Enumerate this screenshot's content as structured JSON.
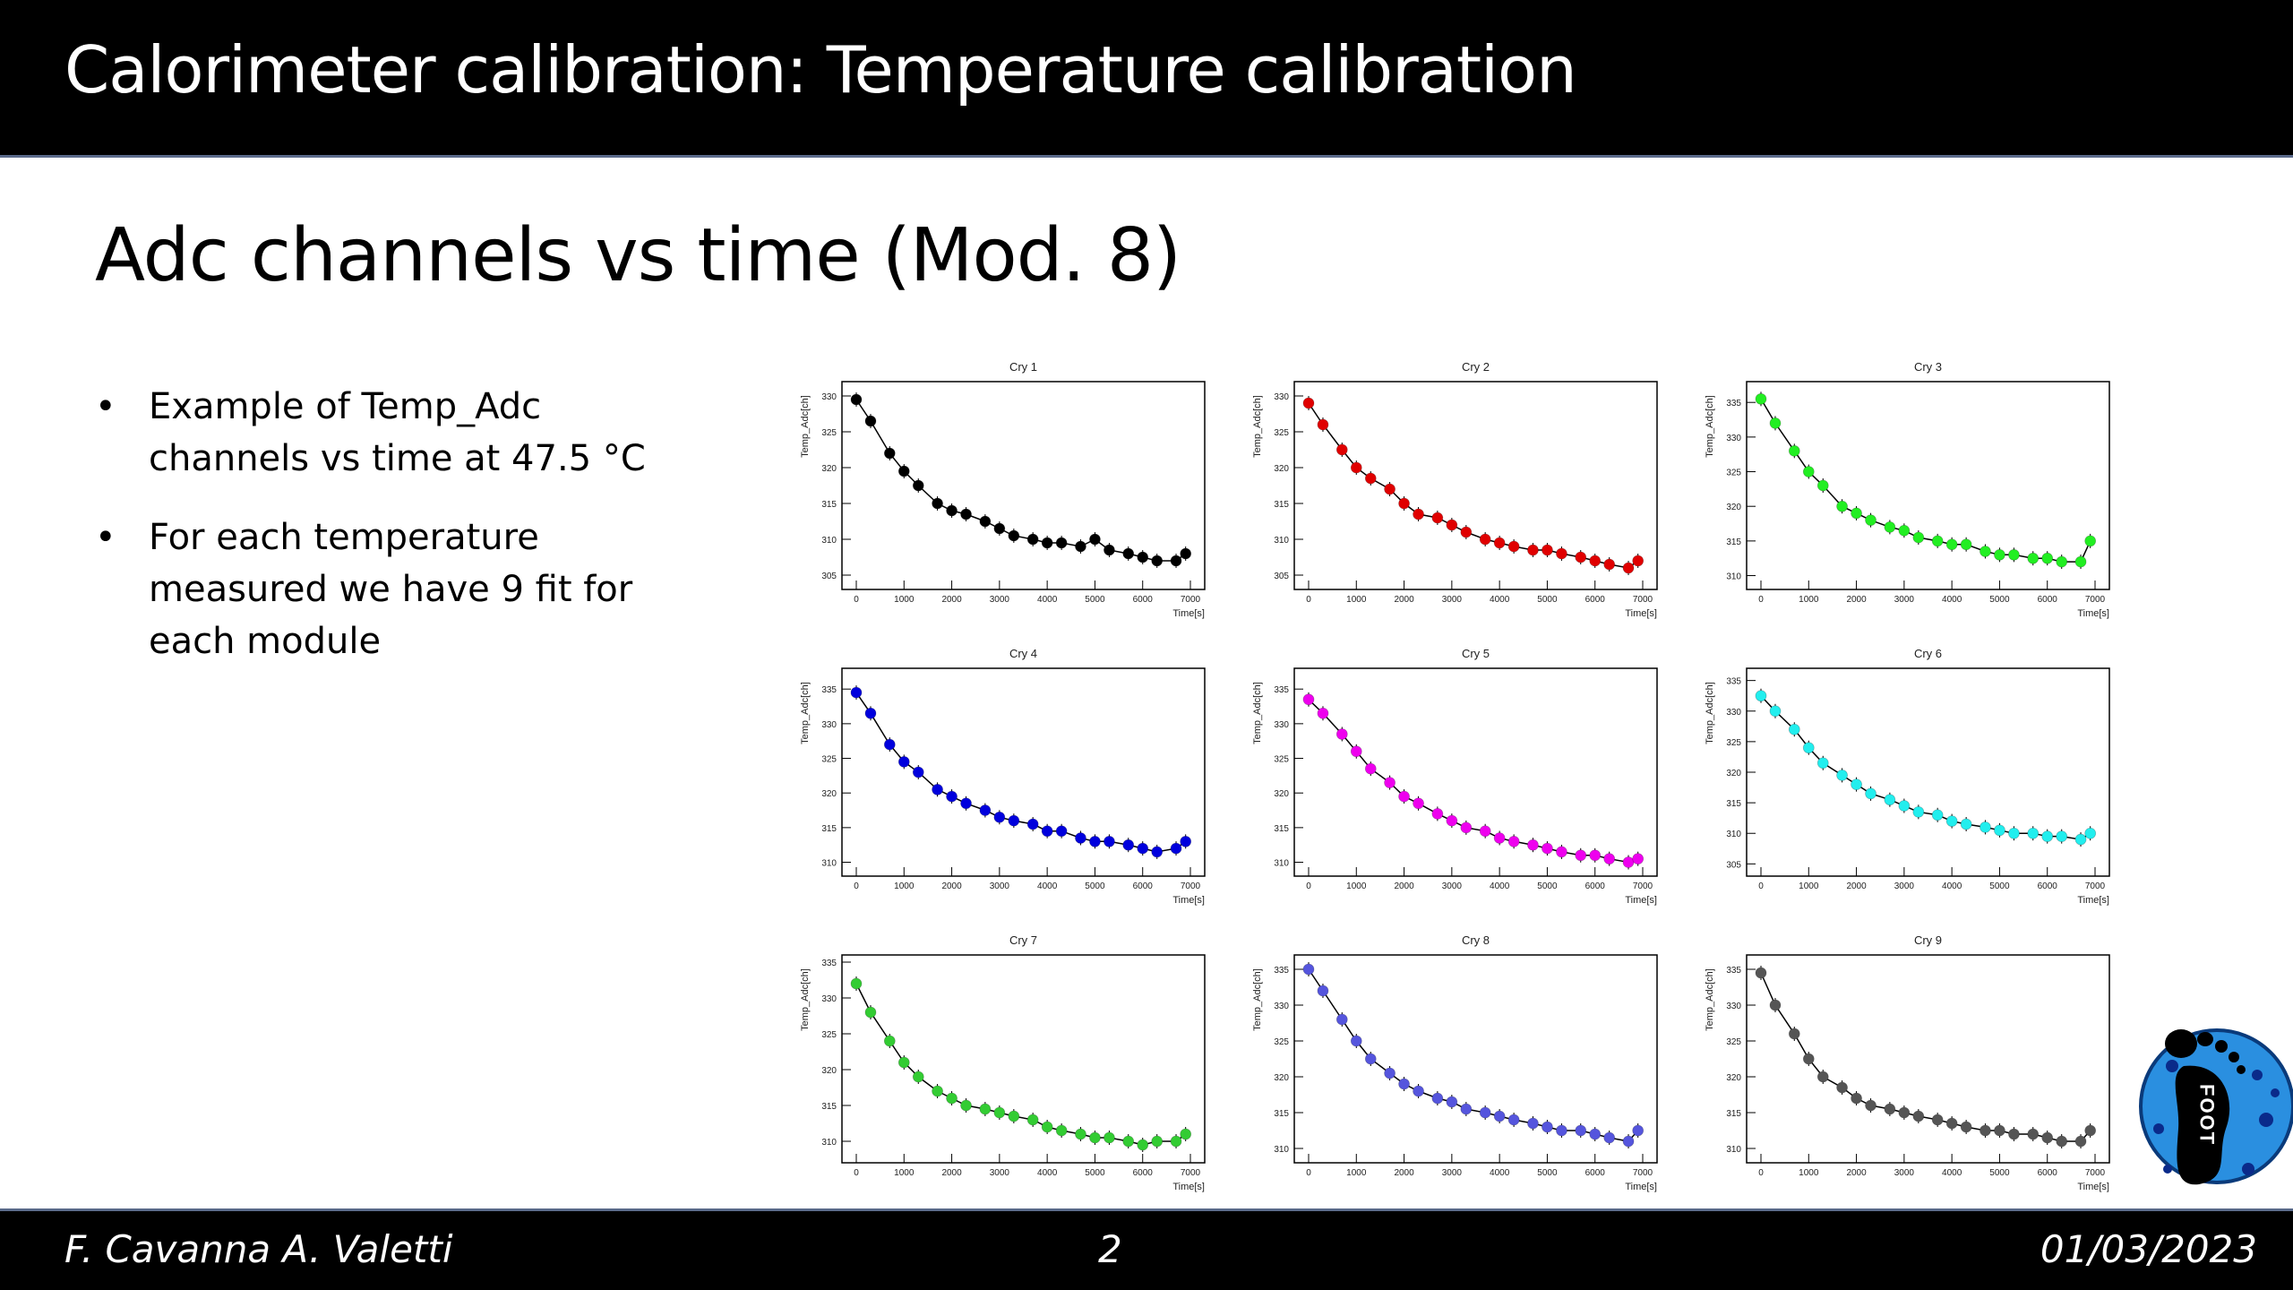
{
  "header": {
    "title": "Calorimeter calibration: Temperature calibration"
  },
  "slide": {
    "subtitle": "Adc channels vs time (Mod. 8)",
    "bullets": [
      "Example of Temp_Adc channels vs time at 47.5 °C",
      "For each temperature measured we have 9 fit for each module"
    ]
  },
  "footer": {
    "authors": "F. Cavanna A. Valetti",
    "page": "2",
    "date": "01/03/2023"
  },
  "logo": {
    "text": "FOOT"
  },
  "colors": {
    "bar": "#000000",
    "accent_line": "#5a6a8a"
  },
  "chart_data": [
    {
      "type": "scatter",
      "title": "Cry 1",
      "xlabel": "Time[s]",
      "ylabel": "Temp_Adc[ch]",
      "color": "#000000",
      "xlim": [
        -300,
        7300
      ],
      "ylim": [
        303,
        332
      ],
      "xticks": [
        0,
        1000,
        2000,
        3000,
        4000,
        5000,
        6000,
        7000
      ],
      "yticks": [
        305,
        310,
        315,
        320,
        325,
        330
      ],
      "x": [
        0,
        300,
        700,
        1000,
        1300,
        1700,
        2000,
        2300,
        2700,
        3000,
        3300,
        3700,
        4000,
        4300,
        4700,
        5000,
        5300,
        5700,
        6000,
        6300,
        6700,
        6900
      ],
      "y": [
        329.5,
        326.5,
        322,
        319.5,
        317.5,
        315,
        314,
        313.5,
        312.5,
        311.5,
        310.5,
        310,
        309.5,
        309.5,
        309,
        310,
        308.5,
        308,
        307.5,
        307,
        307,
        308
      ]
    },
    {
      "type": "scatter",
      "title": "Cry 2",
      "xlabel": "Time[s]",
      "ylabel": "Temp_Adc[ch]",
      "color": "#e00000",
      "xlim": [
        -300,
        7300
      ],
      "ylim": [
        303,
        332
      ],
      "xticks": [
        0,
        1000,
        2000,
        3000,
        4000,
        5000,
        6000,
        7000
      ],
      "yticks": [
        305,
        310,
        315,
        320,
        325,
        330
      ],
      "x": [
        0,
        300,
        700,
        1000,
        1300,
        1700,
        2000,
        2300,
        2700,
        3000,
        3300,
        3700,
        4000,
        4300,
        4700,
        5000,
        5300,
        5700,
        6000,
        6300,
        6700,
        6900
      ],
      "y": [
        329,
        326,
        322.5,
        320,
        318.5,
        317,
        315,
        313.5,
        313,
        312,
        311,
        310,
        309.5,
        309,
        308.5,
        308.5,
        308,
        307.5,
        307,
        306.5,
        306,
        307
      ]
    },
    {
      "type": "scatter",
      "title": "Cry 3",
      "xlabel": "Time[s]",
      "ylabel": "Temp_Adc[ch]",
      "color": "#22ee22",
      "xlim": [
        -300,
        7300
      ],
      "ylim": [
        308,
        338
      ],
      "xticks": [
        0,
        1000,
        2000,
        3000,
        4000,
        5000,
        6000,
        7000
      ],
      "yticks": [
        310,
        315,
        320,
        325,
        330,
        335
      ],
      "x": [
        0,
        300,
        700,
        1000,
        1300,
        1700,
        2000,
        2300,
        2700,
        3000,
        3300,
        3700,
        4000,
        4300,
        4700,
        5000,
        5300,
        5700,
        6000,
        6300,
        6700,
        6900
      ],
      "y": [
        335.5,
        332,
        328,
        325,
        323,
        320,
        319,
        318,
        317,
        316.5,
        315.5,
        315,
        314.5,
        314.5,
        313.5,
        313,
        313,
        312.5,
        312.5,
        312,
        312,
        315
      ]
    },
    {
      "type": "scatter",
      "title": "Cry 4",
      "xlabel": "Time[s]",
      "ylabel": "Temp_Adc[ch]",
      "color": "#0000dd",
      "xlim": [
        -300,
        7300
      ],
      "ylim": [
        308,
        338
      ],
      "xticks": [
        0,
        1000,
        2000,
        3000,
        4000,
        5000,
        6000,
        7000
      ],
      "yticks": [
        310,
        315,
        320,
        325,
        330,
        335
      ],
      "x": [
        0,
        300,
        700,
        1000,
        1300,
        1700,
        2000,
        2300,
        2700,
        3000,
        3300,
        3700,
        4000,
        4300,
        4700,
        5000,
        5300,
        5700,
        6000,
        6300,
        6700,
        6900
      ],
      "y": [
        334.5,
        331.5,
        327,
        324.5,
        323,
        320.5,
        319.5,
        318.5,
        317.5,
        316.5,
        316,
        315.5,
        314.5,
        314.5,
        313.5,
        313,
        313,
        312.5,
        312,
        311.5,
        312,
        313
      ]
    },
    {
      "type": "scatter",
      "title": "Cry 5",
      "xlabel": "Time[s]",
      "ylabel": "Temp_Adc[ch]",
      "color": "#ee00ee",
      "xlim": [
        -300,
        7300
      ],
      "ylim": [
        308,
        338
      ],
      "xticks": [
        0,
        1000,
        2000,
        3000,
        4000,
        5000,
        6000,
        7000
      ],
      "yticks": [
        310,
        315,
        320,
        325,
        330,
        335
      ],
      "x": [
        0,
        300,
        700,
        1000,
        1300,
        1700,
        2000,
        2300,
        2700,
        3000,
        3300,
        3700,
        4000,
        4300,
        4700,
        5000,
        5300,
        5700,
        6000,
        6300,
        6700,
        6900
      ],
      "y": [
        333.5,
        331.5,
        328.5,
        326,
        323.5,
        321.5,
        319.5,
        318.5,
        317,
        316,
        315,
        314.5,
        313.5,
        313,
        312.5,
        312,
        311.5,
        311,
        311,
        310.5,
        310,
        310.5
      ]
    },
    {
      "type": "scatter",
      "title": "Cry 6",
      "xlabel": "Time[s]",
      "ylabel": "Temp_Adc[ch]",
      "color": "#22eeee",
      "xlim": [
        -300,
        7300
      ],
      "ylim": [
        303,
        337
      ],
      "xticks": [
        0,
        1000,
        2000,
        3000,
        4000,
        5000,
        6000,
        7000
      ],
      "yticks": [
        305,
        310,
        315,
        320,
        325,
        330,
        335
      ],
      "x": [
        0,
        300,
        700,
        1000,
        1300,
        1700,
        2000,
        2300,
        2700,
        3000,
        3300,
        3700,
        4000,
        4300,
        4700,
        5000,
        5300,
        5700,
        6000,
        6300,
        6700,
        6900
      ],
      "y": [
        332.5,
        330,
        327,
        324,
        321.5,
        319.5,
        318,
        316.5,
        315.5,
        314.5,
        313.5,
        313,
        312,
        311.5,
        311,
        310.5,
        310,
        310,
        309.5,
        309.5,
        309,
        310
      ]
    },
    {
      "type": "scatter",
      "title": "Cry 7",
      "xlabel": "Time[s]",
      "ylabel": "Temp_Adc[ch]",
      "color": "#33cc33",
      "xlim": [
        -300,
        7300
      ],
      "ylim": [
        307,
        336
      ],
      "xticks": [
        0,
        1000,
        2000,
        3000,
        4000,
        5000,
        6000,
        7000
      ],
      "yticks": [
        310,
        315,
        320,
        325,
        330,
        335
      ],
      "x": [
        0,
        300,
        700,
        1000,
        1300,
        1700,
        2000,
        2300,
        2700,
        3000,
        3300,
        3700,
        4000,
        4300,
        4700,
        5000,
        5300,
        5700,
        6000,
        6300,
        6700,
        6900
      ],
      "y": [
        332,
        328,
        324,
        321,
        319,
        317,
        316,
        315,
        314.5,
        314,
        313.5,
        313,
        312,
        311.5,
        311,
        310.5,
        310.5,
        310,
        309.5,
        310,
        310,
        311
      ]
    },
    {
      "type": "scatter",
      "title": "Cry 8",
      "xlabel": "Time[s]",
      "ylabel": "Temp_Adc[ch]",
      "color": "#5555dd",
      "xlim": [
        -300,
        7300
      ],
      "ylim": [
        308,
        337
      ],
      "xticks": [
        0,
        1000,
        2000,
        3000,
        4000,
        5000,
        6000,
        7000
      ],
      "yticks": [
        310,
        315,
        320,
        325,
        330,
        335
      ],
      "x": [
        0,
        300,
        700,
        1000,
        1300,
        1700,
        2000,
        2300,
        2700,
        3000,
        3300,
        3700,
        4000,
        4300,
        4700,
        5000,
        5300,
        5700,
        6000,
        6300,
        6700,
        6900
      ],
      "y": [
        335,
        332,
        328,
        325,
        322.5,
        320.5,
        319,
        318,
        317,
        316.5,
        315.5,
        315,
        314.5,
        314,
        313.5,
        313,
        312.5,
        312.5,
        312,
        311.5,
        311,
        312.5
      ]
    },
    {
      "type": "scatter",
      "title": "Cry 9",
      "xlabel": "Time[s]",
      "ylabel": "Temp_Adc[ch]",
      "color": "#555555",
      "xlim": [
        -300,
        7300
      ],
      "ylim": [
        308,
        337
      ],
      "xticks": [
        0,
        1000,
        2000,
        3000,
        4000,
        5000,
        6000,
        7000
      ],
      "yticks": [
        310,
        315,
        320,
        325,
        330,
        335
      ],
      "x": [
        0,
        300,
        700,
        1000,
        1300,
        1700,
        2000,
        2300,
        2700,
        3000,
        3300,
        3700,
        4000,
        4300,
        4700,
        5000,
        5300,
        5700,
        6000,
        6300,
        6700,
        6900
      ],
      "y": [
        334.5,
        330,
        326,
        322.5,
        320,
        318.5,
        317,
        316,
        315.5,
        315,
        314.5,
        314,
        313.5,
        313,
        312.5,
        312.5,
        312,
        312,
        311.5,
        311,
        311,
        312.5
      ]
    }
  ]
}
